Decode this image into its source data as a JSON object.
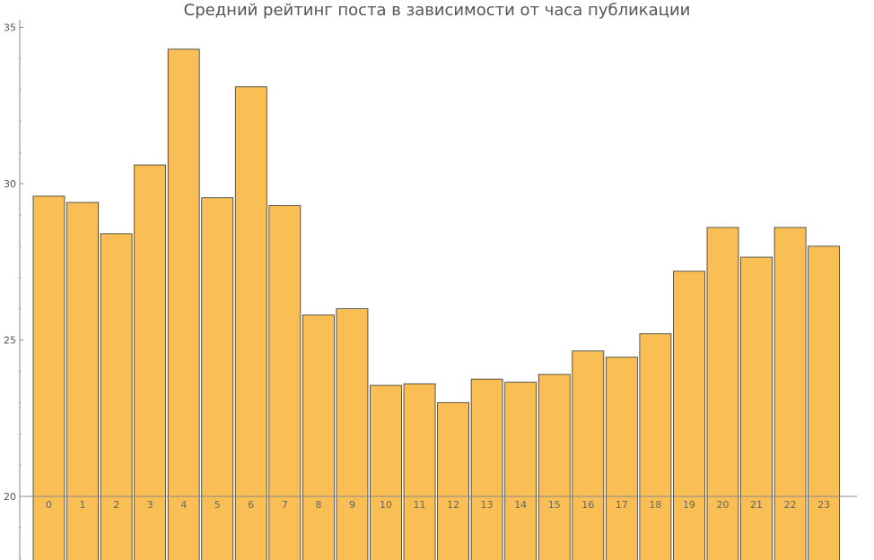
{
  "chart_data": {
    "type": "bar",
    "title": "Средний рейтинг поста в зависимости от часа публикации",
    "xlabel": "",
    "ylabel": "",
    "categories": [
      "0",
      "1",
      "2",
      "3",
      "4",
      "5",
      "6",
      "7",
      "8",
      "9",
      "10",
      "11",
      "12",
      "13",
      "14",
      "15",
      "16",
      "17",
      "18",
      "19",
      "20",
      "21",
      "22",
      "23"
    ],
    "values": [
      29.6,
      29.4,
      28.4,
      30.6,
      34.3,
      29.55,
      33.1,
      29.3,
      25.8,
      26.0,
      23.55,
      23.6,
      23.0,
      23.75,
      23.65,
      23.9,
      24.65,
      24.45,
      25.2,
      27.2,
      28.6,
      27.65,
      28.6,
      28.0
    ],
    "baseline": 20,
    "ylim": [
      18,
      35
    ],
    "yticks": [
      20,
      25,
      30,
      35
    ],
    "grid": false,
    "legend": "none",
    "bar_color": "#f9be54",
    "bar_edge_color": "#333333"
  }
}
